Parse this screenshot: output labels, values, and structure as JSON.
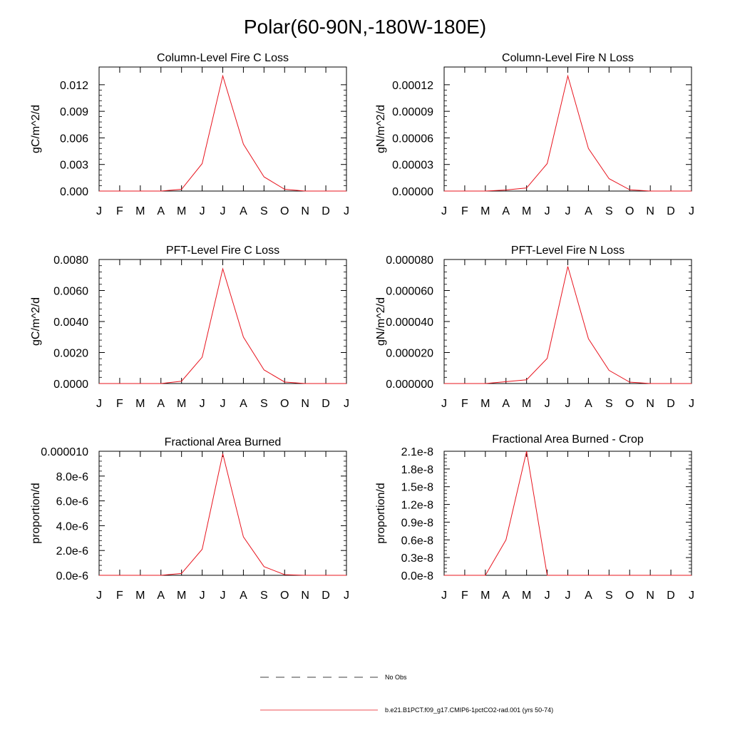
{
  "title": "Polar(60-90N,-180W-180E)",
  "months": [
    "J",
    "F",
    "M",
    "A",
    "M",
    "J",
    "J",
    "A",
    "S",
    "O",
    "N",
    "D",
    "J"
  ],
  "legend": {
    "obs_label": "No Obs",
    "obs_color": "#000000",
    "model_label": "b.e21.B1PCT.f09_g17.CMIP6-1pctCO2-rad.001 (yrs 50-74)",
    "model_color": "#e8141e"
  },
  "chart_data": [
    {
      "type": "line",
      "title": "Column-Level Fire C Loss",
      "ylabel": "gC/m^2/d",
      "ylim": [
        0,
        0.014
      ],
      "yticks": [
        0,
        0.003,
        0.006,
        0.009,
        0.012
      ],
      "ytick_labels": [
        "0.000",
        "0.003",
        "0.006",
        "0.009",
        "0.012"
      ],
      "series": [
        {
          "values": [
            0,
            0,
            0,
            0,
            0.0002,
            0.0031,
            0.013,
            0.0053,
            0.0016,
            0.0002,
            0,
            0,
            0
          ]
        }
      ]
    },
    {
      "type": "line",
      "title": "Column-Level Fire N Loss",
      "ylabel": "gN/m^2/d",
      "ylim": [
        0,
        0.00014
      ],
      "yticks": [
        0,
        3e-05,
        6e-05,
        9e-05,
        0.00012
      ],
      "ytick_labels": [
        "0.00000",
        "0.00003",
        "0.00006",
        "0.00009",
        "0.00012"
      ],
      "series": [
        {
          "values": [
            0,
            0,
            0,
            1.2e-06,
            3.5e-06,
            3.1e-05,
            0.00013,
            4.8e-05,
            1.4e-05,
            1.5e-06,
            0,
            0,
            0
          ]
        }
      ]
    },
    {
      "type": "line",
      "title": "PFT-Level Fire C Loss",
      "ylabel": "gC/m^2/d",
      "ylim": [
        0,
        0.008
      ],
      "yticks": [
        0,
        0.002,
        0.004,
        0.006,
        0.008
      ],
      "ytick_labels": [
        "0.0000",
        "0.0020",
        "0.0040",
        "0.0060",
        "0.0080"
      ],
      "series": [
        {
          "values": [
            0,
            0,
            0,
            0,
            0.00015,
            0.0017,
            0.0074,
            0.003,
            0.00088,
            0.0001,
            0,
            0,
            0
          ]
        }
      ]
    },
    {
      "type": "line",
      "title": "PFT-Level Fire N Loss",
      "ylabel": "gN/m^2/d",
      "ylim": [
        0,
        8e-05
      ],
      "yticks": [
        0,
        2e-05,
        4e-05,
        6e-05,
        8e-05
      ],
      "ytick_labels": [
        "0.000000",
        "0.000020",
        "0.000040",
        "0.000060",
        "0.000080"
      ],
      "series": [
        {
          "values": [
            0,
            0,
            0,
            1.2e-06,
            2.4e-06,
            1.62e-05,
            7.55e-05,
            2.89e-05,
            8.5e-06,
            9e-07,
            0,
            0,
            0
          ]
        }
      ]
    },
    {
      "type": "line",
      "title": "Fractional Area Burned",
      "ylabel": "proportion/d",
      "ylim": [
        0,
        1e-05
      ],
      "yticks": [
        0,
        2e-06,
        4e-06,
        6e-06,
        8e-06,
        1e-05
      ],
      "ytick_labels": [
        "0.0e-6",
        "2.0e-6",
        "4.0e-6",
        "6.0e-6",
        "8.0e-6",
        "0.000010"
      ],
      "series": [
        {
          "values": [
            0,
            0,
            0,
            0,
            1.5e-07,
            2.1e-06,
            9.8e-06,
            3.1e-06,
            7e-07,
            5e-08,
            0,
            0,
            0
          ]
        }
      ]
    },
    {
      "type": "line",
      "title": "Fractional Area Burned - Crop",
      "ylabel": "proportion/d",
      "ylim": [
        0,
        2.1e-08
      ],
      "yticks": [
        0,
        3e-09,
        6e-09,
        9e-09,
        1.2e-08,
        1.5e-08,
        1.8e-08,
        2.1e-08
      ],
      "ytick_labels": [
        "0.0e-8",
        "0.3e-8",
        "0.6e-8",
        "0.9e-8",
        "1.2e-8",
        "1.5e-8",
        "1.8e-8",
        "2.1e-8"
      ],
      "series": [
        {
          "values": [
            0,
            0,
            0,
            6e-09,
            2.1e-08,
            0,
            0,
            0,
            0,
            0,
            0,
            0,
            0
          ]
        }
      ]
    }
  ]
}
